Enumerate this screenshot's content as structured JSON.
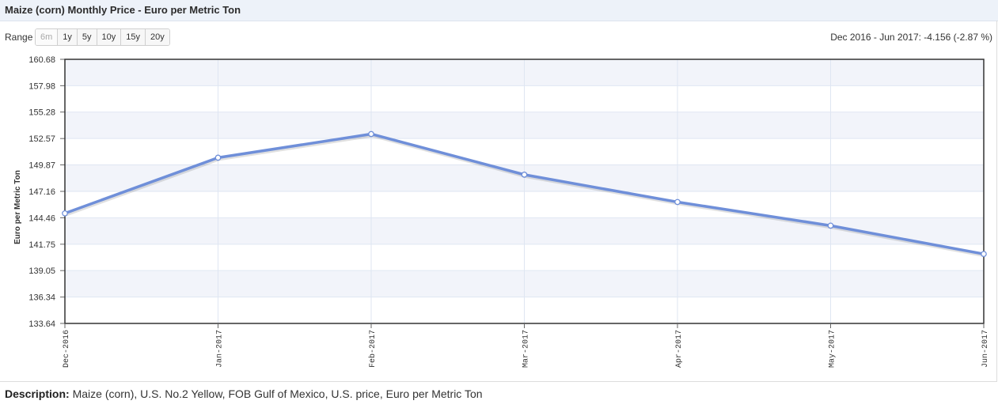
{
  "header": {
    "title": "Maize (corn) Monthly Price - Euro per Metric Ton"
  },
  "range": {
    "label": "Range",
    "buttons": [
      "6m",
      "1y",
      "5y",
      "10y",
      "15y",
      "20y"
    ],
    "disabled_index": 0
  },
  "change_summary": "Dec 2016 - Jun 2017: -4.156 (-2.87 %)",
  "description": {
    "label": "Description:",
    "text": "Maize (corn), U.S. No.2 Yellow, FOB Gulf of Mexico, U.S. price, Euro per Metric Ton"
  },
  "colors": {
    "line": "#6f8fd9",
    "band": "#f2f4fa",
    "grid": "#dfe6f2",
    "border": "#333333"
  },
  "chart_data": {
    "type": "line",
    "ylabel": "Euro per Metric Ton",
    "xlabel": "",
    "categories": [
      "Dec-2016",
      "Jan-2017",
      "Feb-2017",
      "Mar-2017",
      "Apr-2017",
      "May-2017",
      "Jun-2017"
    ],
    "series": [
      {
        "values": [
          144.91,
          150.61,
          153.03,
          148.87,
          146.07,
          143.65,
          140.75
        ]
      }
    ],
    "yticks": [
      "133.64",
      "136.34",
      "139.05",
      "141.75",
      "144.46",
      "147.16",
      "149.87",
      "152.57",
      "155.28",
      "157.98",
      "160.68"
    ],
    "ylim": [
      133.64,
      160.68
    ],
    "grid": true,
    "legend": "none"
  }
}
